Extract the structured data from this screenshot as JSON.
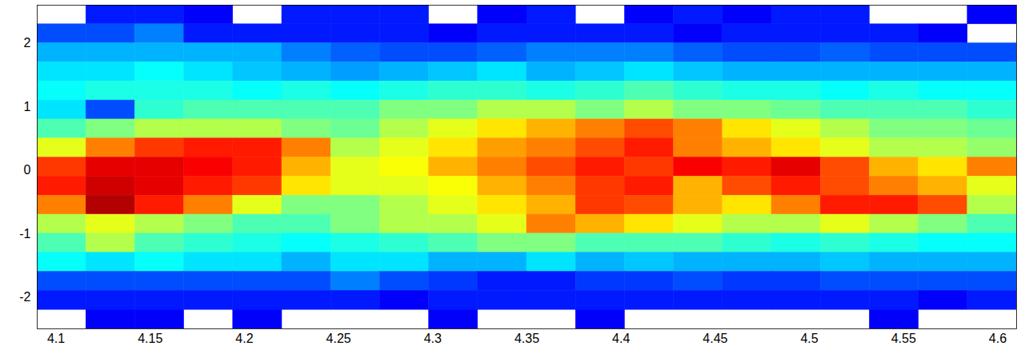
{
  "chart_data": {
    "type": "heatmap",
    "x_edges": [
      4.09,
      4.116,
      4.142,
      4.168,
      4.194,
      4.22,
      4.246,
      4.272,
      4.298,
      4.324,
      4.35,
      4.376,
      4.402,
      4.428,
      4.454,
      4.48,
      4.506,
      4.532,
      4.558,
      4.584,
      4.61
    ],
    "y_edges": [
      2.6,
      2.3,
      2.0,
      1.7,
      1.4,
      1.1,
      0.8,
      0.5,
      0.2,
      -0.1,
      -0.4,
      -0.7,
      -1.0,
      -1.3,
      -1.6,
      -1.9,
      -2.2,
      -2.5
    ],
    "cells": [
      [
        null,
        0.15,
        0.15,
        0.12,
        null,
        0.15,
        0.15,
        0.15,
        null,
        0.12,
        0.15,
        null,
        0.12,
        0.15,
        0.12,
        0.15,
        0.15,
        null,
        null,
        0.12
      ],
      [
        0.2,
        0.2,
        0.25,
        0.15,
        0.15,
        0.15,
        0.15,
        0.15,
        0.12,
        0.15,
        0.15,
        0.15,
        0.15,
        0.12,
        0.15,
        0.15,
        0.15,
        0.15,
        0.12,
        null
      ],
      [
        0.3,
        0.3,
        0.3,
        0.3,
        0.3,
        0.25,
        0.22,
        0.2,
        0.2,
        0.22,
        0.25,
        0.25,
        0.25,
        0.22,
        0.2,
        0.2,
        0.22,
        0.2,
        0.2,
        0.2
      ],
      [
        0.35,
        0.35,
        0.38,
        0.35,
        0.32,
        0.3,
        0.28,
        0.3,
        0.32,
        0.35,
        0.3,
        0.32,
        0.35,
        0.32,
        0.3,
        0.3,
        0.3,
        0.3,
        0.3,
        0.3
      ],
      [
        0.38,
        0.4,
        0.4,
        0.4,
        0.38,
        0.4,
        0.38,
        0.4,
        0.42,
        0.42,
        0.4,
        0.42,
        0.45,
        0.42,
        0.4,
        0.4,
        0.38,
        0.4,
        0.38,
        0.38
      ],
      [
        0.35,
        0.2,
        0.42,
        0.45,
        0.45,
        0.45,
        0.45,
        0.5,
        0.5,
        0.55,
        0.55,
        0.5,
        0.55,
        0.5,
        0.5,
        0.48,
        0.45,
        0.45,
        0.45,
        0.42
      ],
      [
        0.45,
        0.5,
        0.55,
        0.55,
        0.55,
        0.5,
        0.48,
        0.55,
        0.6,
        0.65,
        0.7,
        0.75,
        0.8,
        0.75,
        0.65,
        0.6,
        0.55,
        0.5,
        0.5,
        0.48
      ],
      [
        0.6,
        0.75,
        0.82,
        0.85,
        0.85,
        0.75,
        0.55,
        0.6,
        0.65,
        0.72,
        0.75,
        0.8,
        0.85,
        0.75,
        0.7,
        0.65,
        0.6,
        0.55,
        0.55,
        0.52
      ],
      [
        0.82,
        0.9,
        0.9,
        0.88,
        0.85,
        0.7,
        0.6,
        0.62,
        0.7,
        0.75,
        0.8,
        0.85,
        0.82,
        0.88,
        0.85,
        0.9,
        0.8,
        0.7,
        0.65,
        0.75
      ],
      [
        0.85,
        0.92,
        0.9,
        0.85,
        0.82,
        0.65,
        0.6,
        0.6,
        0.62,
        0.7,
        0.75,
        0.82,
        0.85,
        0.7,
        0.8,
        0.85,
        0.8,
        0.75,
        0.7,
        0.6
      ],
      [
        0.75,
        0.95,
        0.85,
        0.75,
        0.6,
        0.5,
        0.5,
        0.55,
        0.6,
        0.65,
        0.7,
        0.82,
        0.8,
        0.7,
        0.65,
        0.75,
        0.85,
        0.85,
        0.8,
        0.55
      ],
      [
        0.55,
        0.6,
        0.55,
        0.5,
        0.45,
        0.45,
        0.5,
        0.55,
        0.55,
        0.6,
        0.75,
        0.7,
        0.65,
        0.6,
        0.55,
        0.55,
        0.6,
        0.55,
        0.5,
        0.45
      ],
      [
        0.45,
        0.55,
        0.45,
        0.42,
        0.4,
        0.38,
        0.4,
        0.42,
        0.45,
        0.5,
        0.5,
        0.45,
        0.45,
        0.45,
        0.42,
        0.4,
        0.42,
        0.4,
        0.38,
        0.38
      ],
      [
        0.38,
        0.35,
        0.38,
        0.35,
        0.35,
        0.3,
        0.35,
        0.35,
        0.3,
        0.3,
        0.35,
        0.3,
        0.32,
        0.3,
        0.3,
        0.3,
        0.32,
        0.3,
        0.3,
        0.3
      ],
      [
        0.2,
        0.2,
        0.2,
        0.2,
        0.2,
        0.2,
        0.25,
        0.2,
        0.18,
        0.15,
        0.15,
        0.18,
        0.18,
        0.2,
        0.18,
        0.18,
        0.2,
        0.2,
        0.2,
        0.2
      ],
      [
        0.15,
        0.15,
        0.15,
        0.15,
        0.15,
        0.15,
        0.15,
        0.12,
        0.15,
        0.15,
        0.15,
        0.15,
        0.15,
        0.15,
        0.15,
        0.15,
        0.15,
        0.15,
        0.12,
        0.15
      ],
      [
        null,
        0.12,
        0.12,
        null,
        0.12,
        null,
        null,
        null,
        0.12,
        null,
        null,
        0.12,
        null,
        null,
        null,
        null,
        null,
        0.12,
        null,
        null
      ]
    ],
    "zlim": [
      0,
      1
    ],
    "xlim": [
      4.09,
      4.61
    ],
    "xticks": [
      4.1,
      4.15,
      4.2,
      4.25,
      4.3,
      4.35,
      4.4,
      4.45,
      4.5,
      4.55,
      4.6
    ],
    "ylim": [
      -2.5,
      2.6
    ],
    "yticks": [
      -2,
      -1,
      0,
      1,
      2
    ]
  }
}
